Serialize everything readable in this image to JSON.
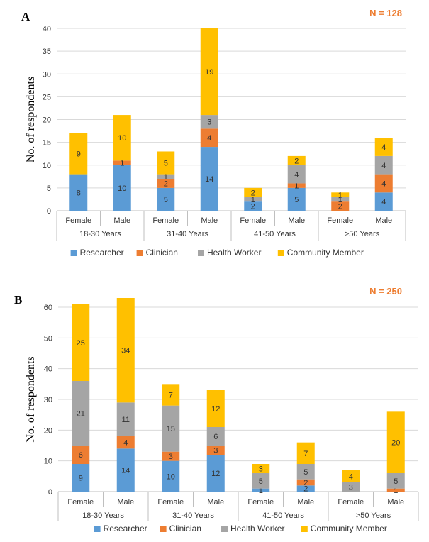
{
  "colors": {
    "Researcher": "#5b9bd5",
    "Clinician": "#ed7d31",
    "Health Worker": "#a5a5a5",
    "Community Member": "#ffc000",
    "n_label": "#ed7d31",
    "grid": "#d9d9d9",
    "axis": "#bfbfbf"
  },
  "chart_data": [
    {
      "type": "bar",
      "stacked": true,
      "panel": "A",
      "annotation": "N = 128",
      "ylabel": "No. of respondents",
      "ylim": [
        0,
        40
      ],
      "yticks": [
        0,
        5,
        10,
        15,
        20,
        25,
        30,
        35,
        40
      ],
      "grid": true,
      "legend_position": "bottom",
      "categories": [
        "Female",
        "Male",
        "Female",
        "Male",
        "Female",
        "Male",
        "Female",
        "Male"
      ],
      "groups": [
        "18-30 Years",
        "31-40 Years",
        "41-50 Years",
        ">50 Years"
      ],
      "series": [
        {
          "name": "Researcher",
          "values": [
            8,
            10,
            5,
            14,
            2,
            5,
            0,
            4
          ]
        },
        {
          "name": "Clinician",
          "values": [
            0,
            1,
            2,
            4,
            0,
            1,
            2,
            4
          ]
        },
        {
          "name": "Health Worker",
          "values": [
            0,
            0,
            1,
            3,
            1,
            4,
            1,
            4
          ]
        },
        {
          "name": "Community Member",
          "values": [
            9,
            10,
            5,
            19,
            2,
            2,
            1,
            4
          ]
        }
      ],
      "data_labels": [
        [
          "8",
          "10",
          "5",
          "14",
          "2",
          "5",
          "",
          "4"
        ],
        [
          "",
          "1",
          "2",
          "4",
          "",
          "1",
          "2",
          "4"
        ],
        [
          "",
          "",
          "1",
          "3",
          "1",
          "4",
          "1",
          "4"
        ],
        [
          "9",
          "10",
          "5",
          "19",
          "2",
          "2",
          "1",
          "4"
        ]
      ]
    },
    {
      "type": "bar",
      "stacked": true,
      "panel": "B",
      "annotation": "N = 250",
      "ylabel": "No. of respondents",
      "ylim": [
        0,
        60
      ],
      "yticks": [
        0,
        10,
        20,
        30,
        40,
        50,
        60
      ],
      "grid": true,
      "legend_position": "bottom",
      "categories": [
        "Female",
        "Male",
        "Female",
        "Male",
        "Female",
        "Male",
        "Female",
        "Male"
      ],
      "groups": [
        "18-30 Years",
        "31-40 Years",
        "41-50 Years",
        ">50 Years"
      ],
      "series": [
        {
          "name": "Researcher",
          "values": [
            9,
            14,
            10,
            12,
            1,
            2,
            0,
            0
          ]
        },
        {
          "name": "Clinician",
          "values": [
            6,
            4,
            3,
            3,
            0,
            2,
            0,
            1
          ]
        },
        {
          "name": "Health Worker",
          "values": [
            21,
            11,
            15,
            6,
            5,
            5,
            3,
            5
          ]
        },
        {
          "name": "Community Member",
          "values": [
            25,
            34,
            7,
            12,
            3,
            7,
            4,
            20
          ]
        }
      ],
      "data_labels": [
        [
          "9",
          "14",
          "10",
          "12",
          "1",
          "2",
          "",
          ""
        ],
        [
          "6",
          "4",
          "3",
          "3",
          "",
          "2",
          "",
          "1"
        ],
        [
          "21",
          "11",
          "15",
          "6",
          "5",
          "5",
          "3",
          "5"
        ],
        [
          "25",
          "34",
          "7",
          "12",
          "3",
          "7",
          "4",
          "20"
        ]
      ]
    }
  ]
}
